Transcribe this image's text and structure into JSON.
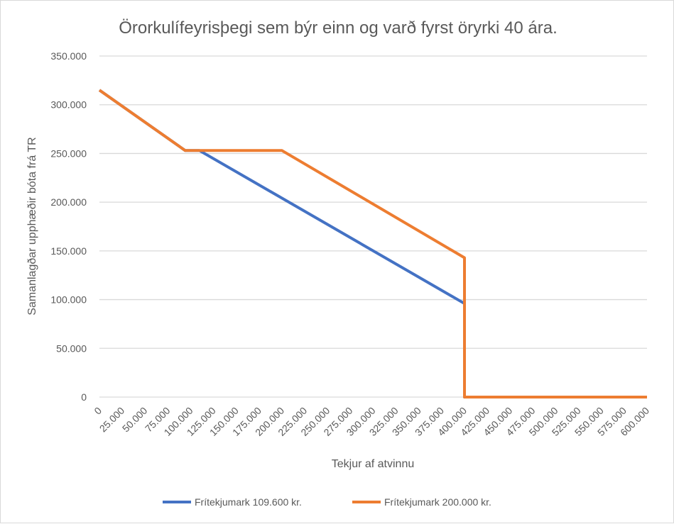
{
  "chart_data": {
    "type": "line",
    "title": "Örorkulífeyrisþegi sem býr einn og varð fyrst öryrki 40 ára.",
    "xlabel": "Tekjur af atvinnu",
    "ylabel": "Samanlagðar upphæðir bóta frá TR",
    "xlim": [
      0,
      600000
    ],
    "ylim": [
      0,
      350000
    ],
    "xticks": [
      0,
      25000,
      50000,
      75000,
      100000,
      125000,
      150000,
      175000,
      200000,
      225000,
      250000,
      275000,
      300000,
      325000,
      350000,
      375000,
      400000,
      425000,
      450000,
      475000,
      500000,
      525000,
      550000,
      575000,
      600000
    ],
    "xtick_labels": [
      "0",
      "25.000",
      "50.000",
      "75.000",
      "100.000",
      "125.000",
      "150.000",
      "175.000",
      "200.000",
      "225.000",
      "250.000",
      "275.000",
      "300.000",
      "325.000",
      "350.000",
      "375.000",
      "400.000",
      "425.000",
      "450.000",
      "475.000",
      "500.000",
      "525.000",
      "550.000",
      "575.000",
      "600.000"
    ],
    "yticks": [
      0,
      50000,
      100000,
      150000,
      200000,
      250000,
      300000,
      350000
    ],
    "ytick_labels": [
      "0",
      "50.000",
      "100.000",
      "150.000",
      "200.000",
      "250.000",
      "300.000",
      "350.000"
    ],
    "grid": true,
    "legend_position": "bottom",
    "series": [
      {
        "name": "Frítekjumark 109.600 kr.",
        "color": "#4472c4",
        "points": [
          [
            0,
            315000
          ],
          [
            94000,
            253000
          ],
          [
            109600,
            253000
          ],
          [
            400000,
            96000
          ],
          [
            400000,
            0
          ],
          [
            600000,
            0
          ]
        ]
      },
      {
        "name": "Frítekjumark 200.000 kr.",
        "color": "#ed7d31",
        "points": [
          [
            0,
            315000
          ],
          [
            94000,
            253000
          ],
          [
            200000,
            253000
          ],
          [
            400000,
            143000
          ],
          [
            400000,
            0
          ],
          [
            600000,
            0
          ]
        ]
      }
    ]
  }
}
